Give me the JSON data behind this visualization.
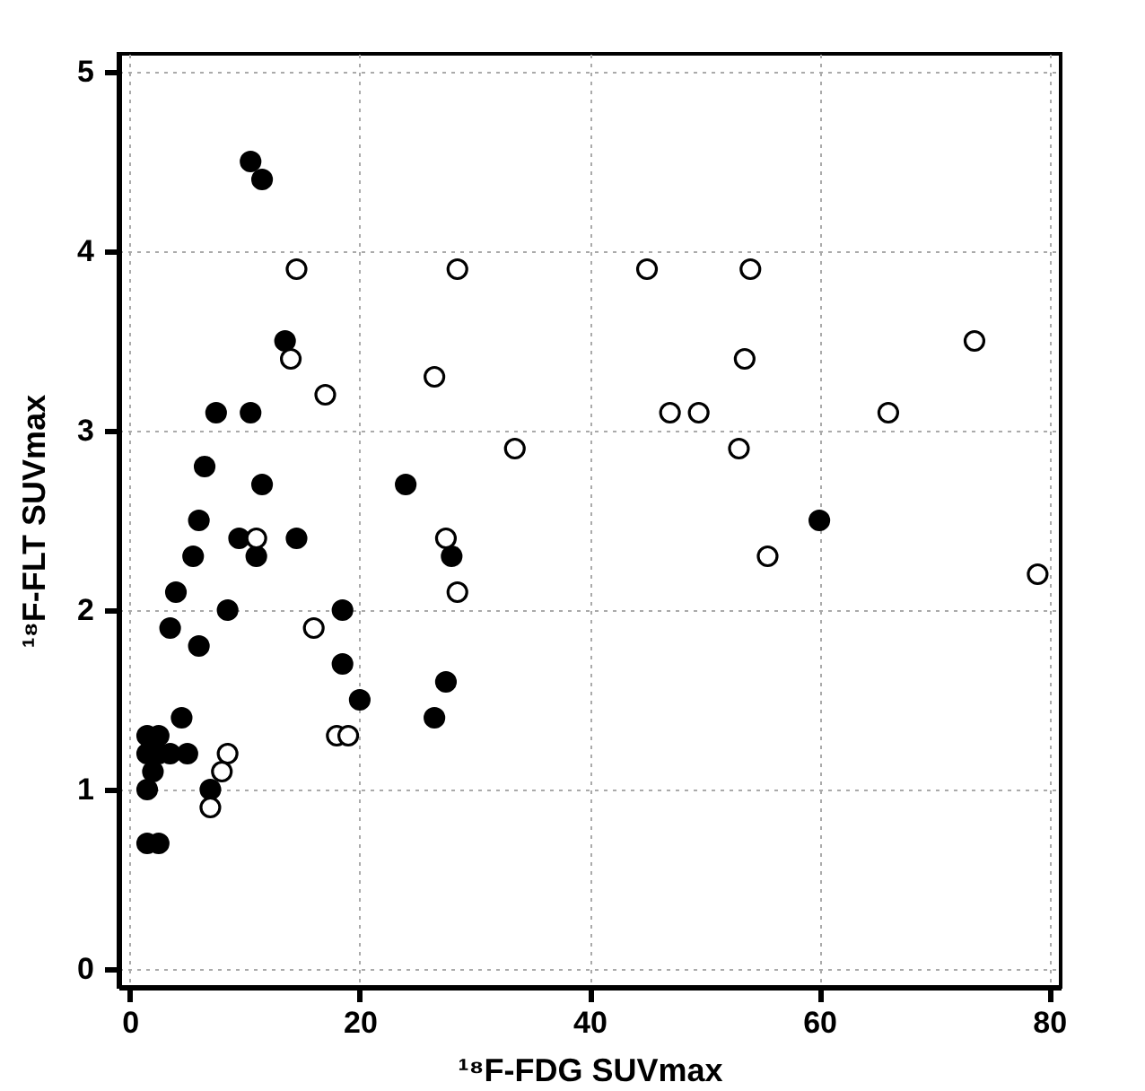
{
  "chart_data": {
    "type": "scatter",
    "xlabel": "¹⁸F-FDG SUVmax",
    "ylabel": "¹⁸F-FLT SUVmax",
    "xlim": [
      -1,
      81
    ],
    "ylim": [
      -0.1,
      5.1
    ],
    "xticks": [
      0,
      20,
      40,
      60,
      80
    ],
    "yticks": [
      0,
      1,
      2,
      3,
      4,
      5
    ],
    "grid": true,
    "marker": "circle",
    "series": [
      {
        "color": "#000000",
        "x": [
          10.5,
          11.5,
          13.5,
          7.5,
          10.5,
          6.5,
          11.5,
          24,
          6,
          9.5,
          14.5,
          11,
          5.5,
          28,
          4,
          8.5,
          18.5,
          3.5,
          6,
          18.5,
          20,
          4.5,
          26.5,
          27.5,
          60,
          7,
          1.5,
          2.5,
          1.5,
          2.5,
          3.5,
          5,
          2,
          1.5,
          1.5,
          2.5
        ],
        "values": [
          4.5,
          4.4,
          3.5,
          3.1,
          3.1,
          2.8,
          2.7,
          2.7,
          2.5,
          2.4,
          2.4,
          2.3,
          2.3,
          2.3,
          2.1,
          2.0,
          2.0,
          1.9,
          1.8,
          1.7,
          1.5,
          1.4,
          1.4,
          1.6,
          2.5,
          1.0,
          1.3,
          1.3,
          1.2,
          1.2,
          1.2,
          1.2,
          1.1,
          1.0,
          0.7,
          0.7
        ]
      },
      {
        "color": "#ffffff",
        "x": [
          14.5,
          28.5,
          45,
          54,
          14,
          53.5,
          73.5,
          17,
          26.5,
          47,
          49.5,
          66,
          33.5,
          53,
          11,
          27.5,
          28.5,
          16,
          55.5,
          79,
          18,
          19,
          8.5,
          8,
          7
        ],
        "values": [
          3.9,
          3.9,
          3.9,
          3.9,
          3.4,
          3.4,
          3.5,
          3.2,
          3.3,
          3.1,
          3.1,
          3.1,
          2.9,
          2.9,
          2.4,
          2.4,
          2.1,
          1.9,
          2.3,
          2.2,
          1.3,
          1.3,
          1.2,
          1.1,
          0.9
        ]
      }
    ]
  }
}
